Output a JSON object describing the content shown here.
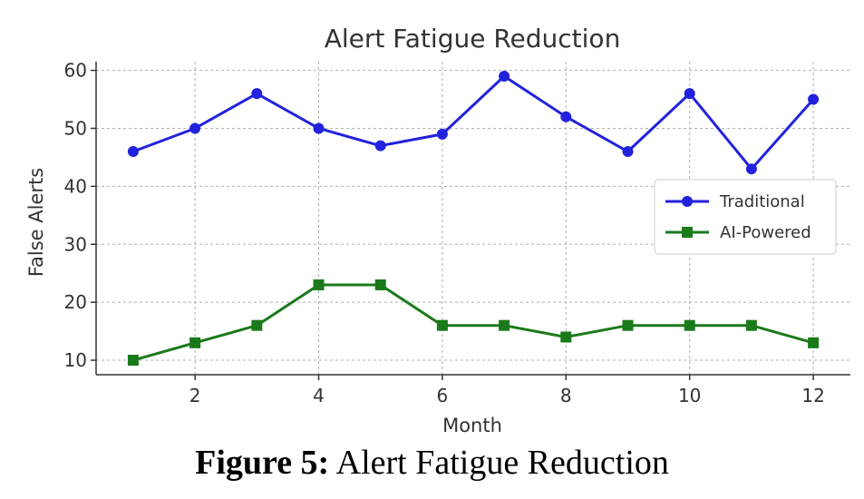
{
  "caption": {
    "label": "Figure 5:",
    "text": "Alert Fatigue Reduction"
  },
  "chart_data": {
    "type": "line",
    "title": "Alert Fatigue Reduction",
    "xlabel": "Month",
    "ylabel": "False Alerts",
    "x": [
      1,
      2,
      3,
      4,
      5,
      6,
      7,
      8,
      9,
      10,
      11,
      12
    ],
    "xticks": [
      2,
      4,
      6,
      8,
      10,
      12
    ],
    "yticks": [
      10,
      20,
      30,
      40,
      50,
      60
    ],
    "xlim": [
      0.4,
      12.6
    ],
    "ylim": [
      7.5,
      61.5
    ],
    "grid": true,
    "legend_position": "center-right",
    "series": [
      {
        "name": "Traditional",
        "marker": "circle",
        "color": "#2222dd",
        "values": [
          46,
          50,
          56,
          50,
          47,
          49,
          59,
          52,
          46,
          56,
          43,
          55
        ]
      },
      {
        "name": "AI-Powered",
        "marker": "square",
        "color": "#1a7a1a",
        "values": [
          10,
          13,
          16,
          23,
          23,
          16,
          16,
          14,
          16,
          16,
          16,
          13
        ]
      }
    ]
  }
}
